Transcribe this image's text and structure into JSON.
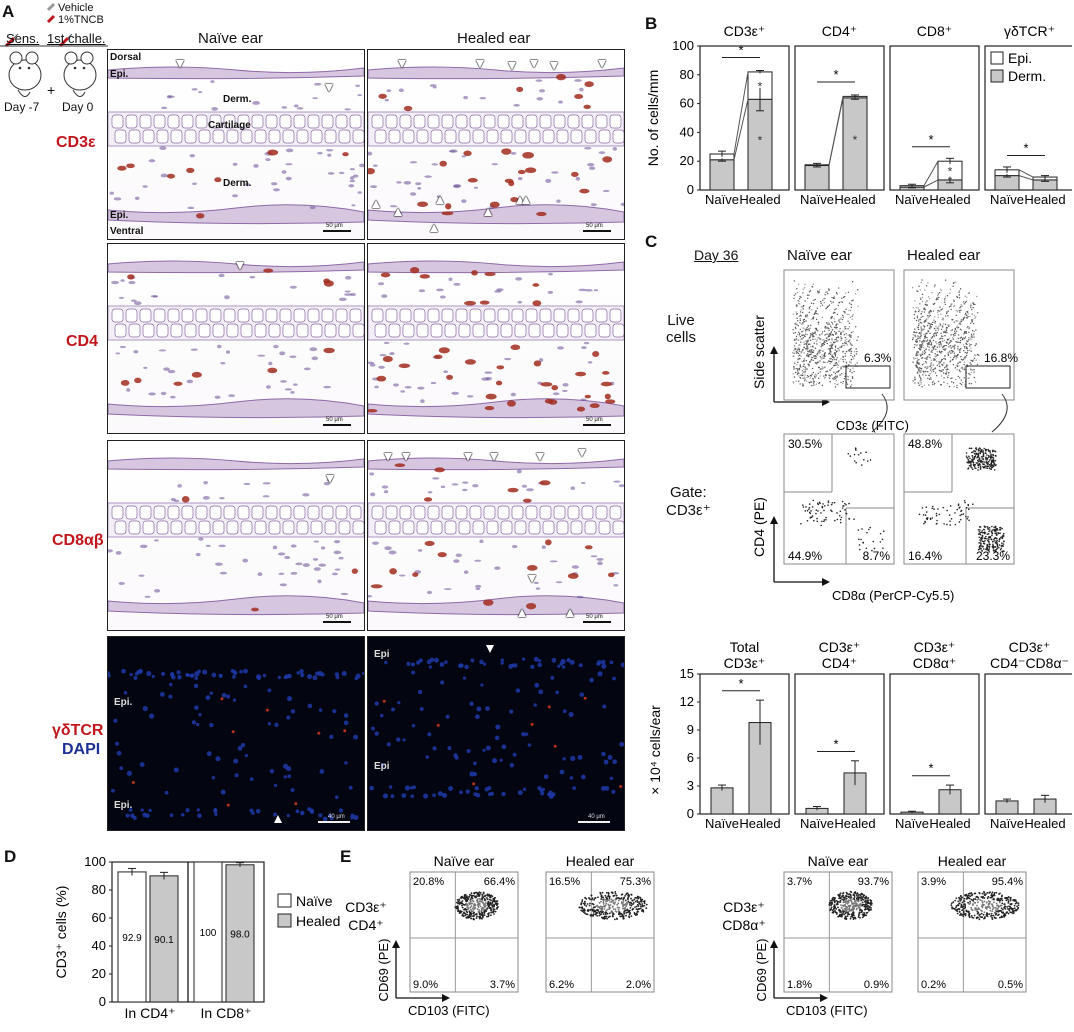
{
  "panel_letters": [
    "A",
    "B",
    "C",
    "D",
    "E"
  ],
  "panel_a": {
    "protocol": {
      "sens_label": "Sens.",
      "challe_label": "1st challe.",
      "vehicle_label": "Vehicle",
      "tncb_label": "1%TNCB",
      "day_minus7": "Day -7",
      "day0": "Day 0",
      "plus": "+"
    },
    "col_headers": [
      "Naïve ear",
      "Healed ear"
    ],
    "row_labels": [
      "CD3ε",
      "CD4",
      "CD8αβ"
    ],
    "fluor_labels": [
      "γδTCR",
      "DAPI"
    ],
    "tissue_labels": {
      "dorsal": "Dorsal",
      "ventral": "Ventral",
      "epi": "Epi.",
      "derm": "Derm.",
      "cartilage": "Cartilage",
      "epi_short": "Epi"
    },
    "scale_histo": "50 μm",
    "scale_fluor": "40 μm"
  },
  "panel_b": {
    "ylabel": "No. of cells/mm",
    "legend": [
      "Epi.",
      "Derm."
    ],
    "colors": {
      "epi": "#ffffff",
      "derm": "#c8c8c8",
      "edge": "#222222"
    },
    "chart_data": {
      "type": "bar",
      "stacked": true,
      "ylim": [
        0,
        100
      ],
      "yticks": [
        0,
        20,
        40,
        60,
        80,
        100
      ],
      "categories": [
        "Naïve",
        "Healed"
      ],
      "subplots": [
        {
          "title": "CD3ε⁺",
          "derm": [
            21,
            63
          ],
          "epi": [
            4,
            19
          ],
          "err_total": [
            2,
            1
          ],
          "err_derm": [
            1,
            8
          ],
          "sig": "*",
          "inner_sig": [
            "*",
            "*"
          ]
        },
        {
          "title": "CD4⁺",
          "derm": [
            17,
            64
          ],
          "epi": [
            0.5,
            1
          ],
          "err_total": [
            1,
            1
          ],
          "err_derm": [
            1,
            1
          ],
          "sig": "*",
          "inner_sig": [
            "*"
          ]
        },
        {
          "title": "CD8⁺",
          "derm": [
            2,
            7
          ],
          "epi": [
            1,
            13
          ],
          "err_total": [
            1,
            2
          ],
          "err_derm": [
            0.5,
            2
          ],
          "sig": "*",
          "inner_sig": [
            "*",
            "*"
          ]
        },
        {
          "title": "γδTCR⁺",
          "derm": [
            10,
            7
          ],
          "epi": [
            4,
            2
          ],
          "err_total": [
            2,
            1
          ],
          "err_derm": [
            1,
            1
          ],
          "sig": "*",
          "inner_sig": []
        }
      ]
    }
  },
  "panel_c": {
    "day_label": "Day 36",
    "col_headers": [
      "Naïve ear",
      "Healed ear"
    ],
    "live_cells": "Live\ncells",
    "gate_label": "Gate:\nCD3ε⁺",
    "ss_axis": "Side scatter",
    "cd3_axis": "CD3ε (FITC)",
    "cd4_axis": "CD4 (PE)",
    "cd8_axis": "CD8α  (PerCP-Cy5.5)",
    "gate_pct": [
      "6.3%",
      "16.8%"
    ],
    "quad_pct": {
      "naive": {
        "tl": "30.5%",
        "bl": "44.9%",
        "br": "8.7%"
      },
      "healed": {
        "tl": "48.8%",
        "bl": "16.4%",
        "br": "23.3%"
      }
    },
    "bar_ylabel": "× 10⁴ cells/ear",
    "chart_data": {
      "type": "bar",
      "ylim": [
        0,
        15
      ],
      "yticks": [
        0,
        3,
        6,
        9,
        12,
        15
      ],
      "categories": [
        "Naïve",
        "Healed"
      ],
      "subplots": [
        {
          "title": "Total\nCD3ε⁺",
          "values": [
            2.8,
            9.8
          ],
          "err": [
            0.3,
            2.4
          ],
          "sig": "*"
        },
        {
          "title": "CD3ε⁺\nCD4⁺",
          "values": [
            0.6,
            4.4
          ],
          "err": [
            0.2,
            1.3
          ],
          "sig": "*"
        },
        {
          "title": "CD3ε⁺\nCD8α⁺",
          "values": [
            0.2,
            2.6
          ],
          "err": [
            0.1,
            0.5
          ],
          "sig": "*"
        },
        {
          "title": "CD3ε⁺\nCD4⁻CD8α⁻",
          "values": [
            1.4,
            1.6
          ],
          "err": [
            0.2,
            0.4
          ],
          "sig": ""
        }
      ]
    }
  },
  "panel_d": {
    "ylabel": "CD3⁺ cells (%)",
    "legend": [
      "Naïve",
      "Healed"
    ],
    "chart_data": {
      "type": "bar",
      "ylim": [
        0,
        100
      ],
      "yticks": [
        0,
        20,
        40,
        60,
        80,
        100
      ],
      "groups": [
        "In CD4⁺",
        "In CD8⁺"
      ],
      "series": [
        {
          "name": "Naïve",
          "values": [
            92.9,
            100
          ],
          "err": [
            2.5,
            0
          ]
        },
        {
          "name": "Healed",
          "values": [
            90.1,
            98.0
          ],
          "err": [
            2.5,
            1.5
          ]
        }
      ],
      "value_labels": [
        [
          "92.9",
          "90.1"
        ],
        [
          "100",
          "98.0"
        ]
      ]
    }
  },
  "panel_e": {
    "cd69_axis": "CD69 (PE)",
    "cd103_axis": "CD103 (FITC)",
    "row_labels": [
      "CD3ε⁺\nCD4⁺",
      "CD3ε⁺\nCD8α⁺"
    ],
    "col_headers": [
      "Naïve ear",
      "Healed ear",
      "Naïve ear",
      "Healed ear"
    ],
    "quads": [
      {
        "tl": "20.8%",
        "tr": "66.4%",
        "bl": "9.0%",
        "br": "3.7%"
      },
      {
        "tl": "16.5%",
        "tr": "75.3%",
        "bl": "6.2%",
        "br": "2.0%"
      },
      {
        "tl": "3.7%",
        "tr": "93.7%",
        "bl": "1.8%",
        "br": "0.9%"
      },
      {
        "tl": "3.9%",
        "tr": "95.4%",
        "bl": "0.2%",
        "br": "0.5%"
      }
    ]
  },
  "axis_labels": {
    "naive": "Naïve",
    "healed": "Healed"
  }
}
